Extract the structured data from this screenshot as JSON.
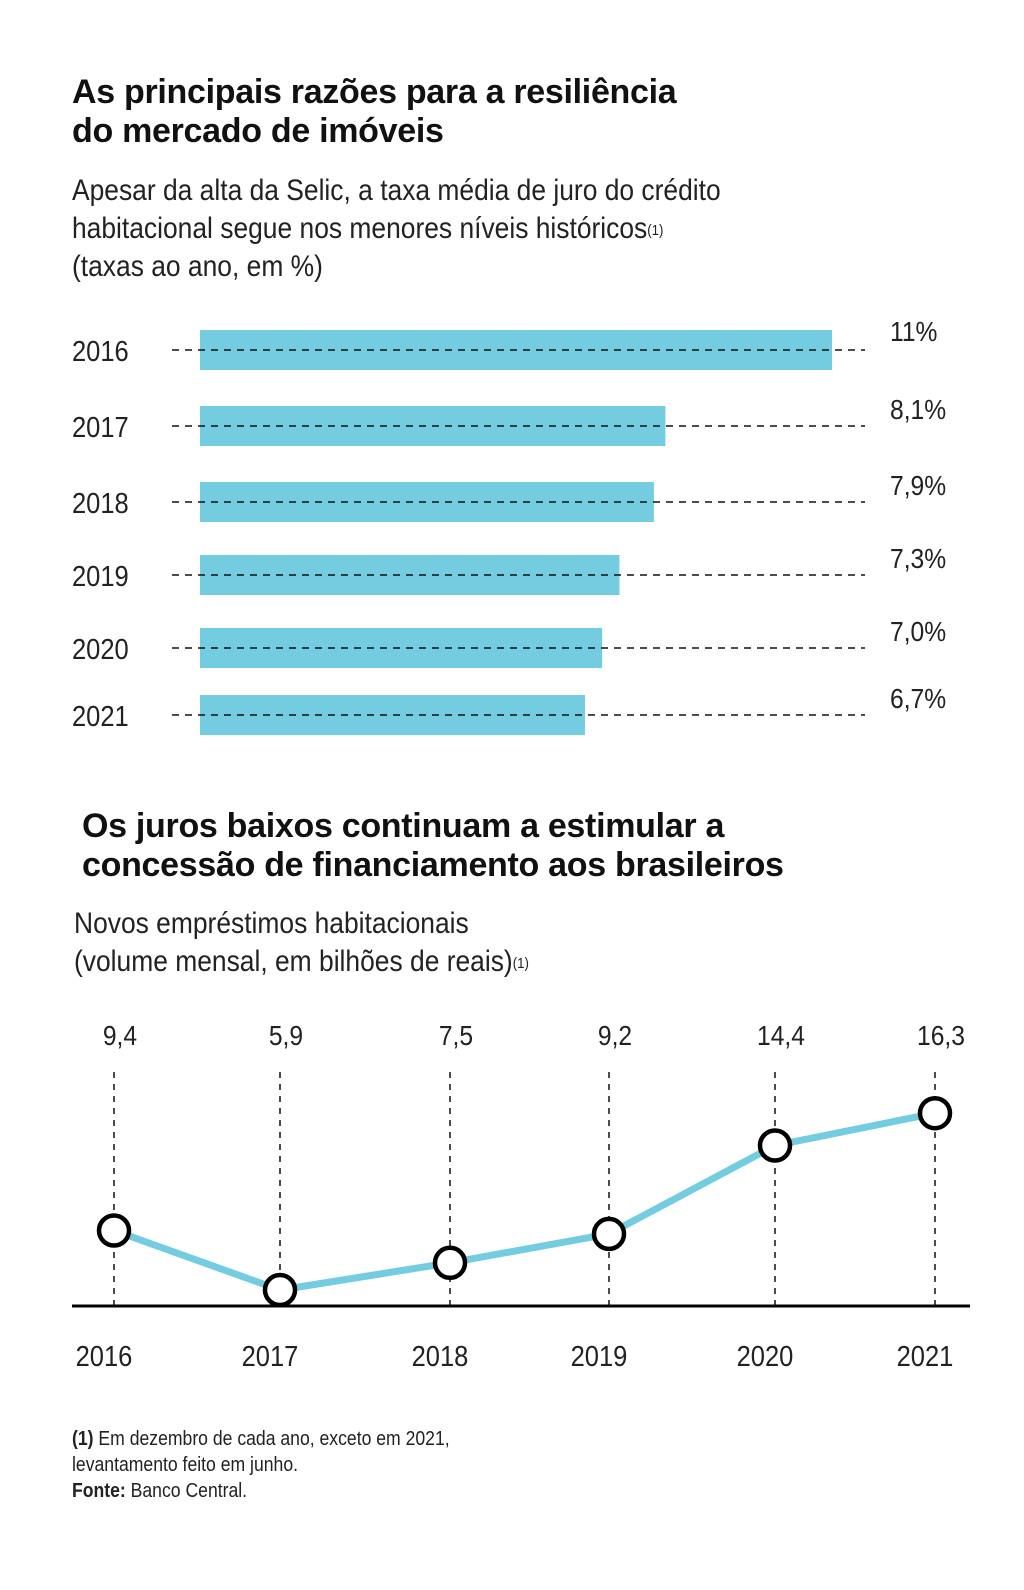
{
  "section1": {
    "title": "As principais razões para a resiliência\ndo mercado de imóveis",
    "subtitle_line1": "Apesar da alta da Selic, a taxa média de juro do crédito",
    "subtitle_line2": "habitacional segue nos menores níveis históricos",
    "subtitle_line2_sup": "(1)",
    "subtitle_line3": "(taxas ao ano, em %)"
  },
  "section2": {
    "title": "Os juros baixos continuam a estimular a\nconcessão de financiamento aos brasileiros",
    "subtitle_line1": "Novos empréstimos habitacionais",
    "subtitle_line2": "(volume mensal, em bilhões de reais)",
    "subtitle_line2_sup": "(1)"
  },
  "colors": {
    "bar": "#74cce0",
    "line": "#74cce0",
    "marker_stroke": "#000000",
    "axis": "#000000"
  },
  "footnote": {
    "note_marker": "(1)",
    "note_text": " Em dezembro de cada ano, exceto em 2021,",
    "note_text2": "levantamento feito em junho.",
    "source_label": "Fonte:",
    "source_text": " Banco Central."
  },
  "chart_data": [
    {
      "type": "bar",
      "orientation": "horizontal",
      "title": "Apesar da alta da Selic, a taxa média de juro do crédito habitacional segue nos menores níveis históricos",
      "xlabel": "",
      "ylabel": "",
      "unit": "% ao ano",
      "categories": [
        "2016",
        "2017",
        "2018",
        "2019",
        "2020",
        "2021"
      ],
      "values": [
        11,
        8.1,
        7.9,
        7.3,
        7.0,
        6.7
      ],
      "labels": [
        "11%",
        "8,1%",
        "7,9%",
        "7,3%",
        "7,0%",
        "6,7%"
      ],
      "xlim": [
        0,
        11
      ],
      "grid": false
    },
    {
      "type": "line",
      "title": "Novos empréstimos habitacionais (volume mensal, em bilhões de reais)",
      "xlabel": "",
      "ylabel": "",
      "x": [
        "2016",
        "2017",
        "2018",
        "2019",
        "2020",
        "2021"
      ],
      "series": [
        {
          "name": "Novos empréstimos habitacionais",
          "values": [
            9.4,
            5.9,
            7.5,
            9.2,
            14.4,
            16.3
          ]
        }
      ],
      "labels": [
        "9,4",
        "5,9",
        "7,5",
        "9,2",
        "14,4",
        "16,3"
      ],
      "grid": false
    }
  ]
}
